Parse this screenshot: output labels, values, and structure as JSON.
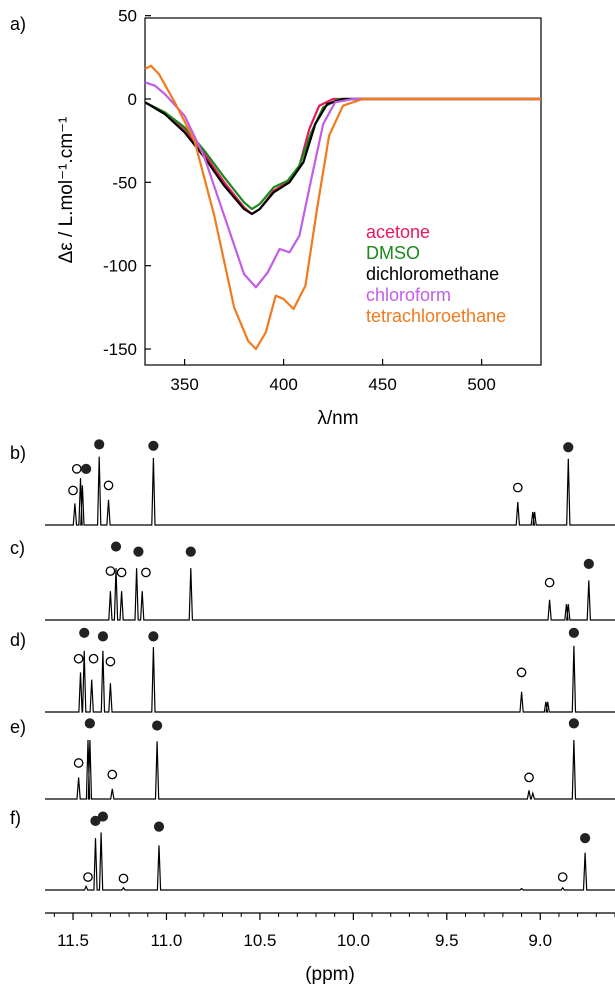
{
  "chart_data": [
    {
      "id": "a",
      "type": "line",
      "panel_label": "a)",
      "xlabel": "λ/nm",
      "ylabel": "Δε / L.mol⁻¹.cm⁻¹",
      "xlim": [
        330,
        530
      ],
      "ylim": [
        -160,
        50
      ],
      "x_ticks": [
        350,
        400,
        450,
        500
      ],
      "y_ticks": [
        50,
        0,
        -50,
        -100,
        -150
      ],
      "legend_placement": "lower-right",
      "grid": false,
      "series": [
        {
          "name": "acetone",
          "color": "#e8185e",
          "points": [
            [
              330,
              -2
            ],
            [
              340,
              -8
            ],
            [
              350,
              -18
            ],
            [
              360,
              -33
            ],
            [
              370,
              -50
            ],
            [
              380,
              -65
            ],
            [
              384,
              -69
            ],
            [
              388,
              -66
            ],
            [
              395,
              -55
            ],
            [
              402,
              -50
            ],
            [
              408,
              -40
            ],
            [
              413,
              -18
            ],
            [
              418,
              -4
            ],
            [
              425,
              0
            ],
            [
              450,
              0
            ],
            [
              530,
              0
            ]
          ]
        },
        {
          "name": "DMSO",
          "color": "#1a8a1a",
          "points": [
            [
              330,
              -2
            ],
            [
              340,
              -8
            ],
            [
              350,
              -17
            ],
            [
              360,
              -31
            ],
            [
              370,
              -47
            ],
            [
              380,
              -62
            ],
            [
              384,
              -66
            ],
            [
              388,
              -63
            ],
            [
              395,
              -53
            ],
            [
              402,
              -49
            ],
            [
              408,
              -40
            ],
            [
              414,
              -20
            ],
            [
              420,
              -5
            ],
            [
              428,
              0
            ],
            [
              450,
              0
            ],
            [
              530,
              0
            ]
          ]
        },
        {
          "name": "dichloromethane",
          "color": "#000000",
          "points": [
            [
              330,
              -2
            ],
            [
              340,
              -9
            ],
            [
              350,
              -20
            ],
            [
              360,
              -35
            ],
            [
              370,
              -52
            ],
            [
              380,
              -66
            ],
            [
              384,
              -69
            ],
            [
              388,
              -66
            ],
            [
              395,
              -56
            ],
            [
              403,
              -50
            ],
            [
              410,
              -38
            ],
            [
              416,
              -15
            ],
            [
              422,
              -3
            ],
            [
              430,
              0
            ],
            [
              450,
              0
            ],
            [
              530,
              0
            ]
          ]
        },
        {
          "name": "chloroform",
          "color": "#c25de6",
          "points": [
            [
              330,
              10
            ],
            [
              335,
              8
            ],
            [
              340,
              3
            ],
            [
              350,
              -10
            ],
            [
              360,
              -35
            ],
            [
              370,
              -70
            ],
            [
              380,
              -105
            ],
            [
              386,
              -113
            ],
            [
              392,
              -104
            ],
            [
              398,
              -90
            ],
            [
              403,
              -92
            ],
            [
              408,
              -82
            ],
            [
              414,
              -48
            ],
            [
              420,
              -15
            ],
            [
              426,
              -2
            ],
            [
              435,
              0
            ],
            [
              450,
              0
            ],
            [
              530,
              0
            ]
          ]
        },
        {
          "name": "tetrachloroethane",
          "color": "#f07a1e",
          "points": [
            [
              330,
              18
            ],
            [
              333,
              20
            ],
            [
              337,
              15
            ],
            [
              345,
              -2
            ],
            [
              355,
              -25
            ],
            [
              365,
              -70
            ],
            [
              375,
              -125
            ],
            [
              382,
              -145
            ],
            [
              386,
              -150
            ],
            [
              391,
              -140
            ],
            [
              396,
              -118
            ],
            [
              400,
              -120
            ],
            [
              405,
              -126
            ],
            [
              411,
              -112
            ],
            [
              417,
              -65
            ],
            [
              423,
              -22
            ],
            [
              430,
              -4
            ],
            [
              440,
              0
            ],
            [
              530,
              0
            ]
          ]
        }
      ]
    },
    {
      "id": "nmr",
      "type": "line",
      "xlabel": "(ppm)",
      "xlim": [
        11.65,
        8.6
      ],
      "x_ticks": [
        11.5,
        11.0,
        10.5,
        10.0,
        9.5,
        9.0
      ],
      "tick_labels": [
        "11.5",
        "11.0",
        "10.5",
        "10.0",
        "9.5",
        "9.0"
      ],
      "marker_legend": {
        "filled": "filled circle",
        "open": "open circle"
      },
      "panels": [
        {
          "label": "b)",
          "peaks": [
            {
              "ppm": 11.49,
              "h": 0.3
            },
            {
              "ppm": 11.46,
              "h": 0.65
            },
            {
              "ppm": 11.45,
              "h": 0.55
            },
            {
              "ppm": 11.36,
              "h": 0.95
            },
            {
              "ppm": 11.31,
              "h": 0.35
            },
            {
              "ppm": 11.07,
              "h": 0.93
            },
            {
              "ppm": 9.12,
              "h": 0.32
            },
            {
              "ppm": 9.04,
              "h": 0.18
            },
            {
              "ppm": 9.03,
              "h": 0.18
            },
            {
              "ppm": 8.85,
              "h": 0.92
            }
          ],
          "markers": [
            {
              "ppm": 11.5,
              "type": "open",
              "level": 0.48
            },
            {
              "ppm": 11.48,
              "type": "open",
              "level": 0.78
            },
            {
              "ppm": 11.43,
              "type": "filled",
              "level": 0.78
            },
            {
              "ppm": 11.36,
              "type": "filled",
              "level": 1.12
            },
            {
              "ppm": 11.31,
              "type": "open",
              "level": 0.55
            },
            {
              "ppm": 11.07,
              "type": "filled",
              "level": 1.1
            },
            {
              "ppm": 9.12,
              "type": "open",
              "level": 0.52
            },
            {
              "ppm": 8.85,
              "type": "filled",
              "level": 1.08
            }
          ]
        },
        {
          "label": "c)",
          "peaks": [
            {
              "ppm": 11.3,
              "h": 0.4
            },
            {
              "ppm": 11.27,
              "h": 0.72
            },
            {
              "ppm": 11.24,
              "h": 0.4
            },
            {
              "ppm": 11.16,
              "h": 0.72
            },
            {
              "ppm": 11.13,
              "h": 0.4
            },
            {
              "ppm": 10.87,
              "h": 0.72
            },
            {
              "ppm": 8.95,
              "h": 0.28
            },
            {
              "ppm": 8.86,
              "h": 0.22
            },
            {
              "ppm": 8.85,
              "h": 0.22
            },
            {
              "ppm": 8.74,
              "h": 0.55
            }
          ],
          "markers": [
            {
              "ppm": 11.3,
              "type": "open",
              "level": 0.68
            },
            {
              "ppm": 11.27,
              "type": "filled",
              "level": 1.02
            },
            {
              "ppm": 11.24,
              "type": "open",
              "level": 0.66
            },
            {
              "ppm": 11.15,
              "type": "filled",
              "level": 0.95
            },
            {
              "ppm": 11.11,
              "type": "open",
              "level": 0.66
            },
            {
              "ppm": 10.87,
              "type": "filled",
              "level": 0.95
            },
            {
              "ppm": 8.95,
              "type": "open",
              "level": 0.52
            },
            {
              "ppm": 8.74,
              "type": "filled",
              "level": 0.78
            }
          ]
        },
        {
          "label": "d)",
          "peaks": [
            {
              "ppm": 11.46,
              "h": 0.55
            },
            {
              "ppm": 11.44,
              "h": 0.85
            },
            {
              "ppm": 11.4,
              "h": 0.45
            },
            {
              "ppm": 11.34,
              "h": 0.85
            },
            {
              "ppm": 11.3,
              "h": 0.4
            },
            {
              "ppm": 11.07,
              "h": 0.9
            },
            {
              "ppm": 9.1,
              "h": 0.28
            },
            {
              "ppm": 8.97,
              "h": 0.14
            },
            {
              "ppm": 8.96,
              "h": 0.14
            },
            {
              "ppm": 8.82,
              "h": 0.92
            }
          ],
          "markers": [
            {
              "ppm": 11.47,
              "type": "open",
              "level": 0.74
            },
            {
              "ppm": 11.44,
              "type": "filled",
              "level": 1.1
            },
            {
              "ppm": 11.39,
              "type": "open",
              "level": 0.74
            },
            {
              "ppm": 11.34,
              "type": "filled",
              "level": 1.05
            },
            {
              "ppm": 11.3,
              "type": "open",
              "level": 0.7
            },
            {
              "ppm": 11.07,
              "type": "filled",
              "level": 1.05
            },
            {
              "ppm": 9.1,
              "type": "open",
              "level": 0.55
            },
            {
              "ppm": 8.82,
              "type": "filled",
              "level": 1.1
            }
          ]
        },
        {
          "label": "e)",
          "peaks": [
            {
              "ppm": 11.47,
              "h": 0.3
            },
            {
              "ppm": 11.42,
              "h": 0.82
            },
            {
              "ppm": 11.41,
              "h": 0.82
            },
            {
              "ppm": 11.29,
              "h": 0.14
            },
            {
              "ppm": 11.05,
              "h": 0.8
            },
            {
              "ppm": 9.06,
              "h": 0.12
            },
            {
              "ppm": 9.04,
              "h": 0.08
            },
            {
              "ppm": 8.82,
              "h": 0.82
            }
          ],
          "markers": [
            {
              "ppm": 11.47,
              "type": "open",
              "level": 0.5
            },
            {
              "ppm": 11.41,
              "type": "filled",
              "level": 1.05
            },
            {
              "ppm": 11.29,
              "type": "open",
              "level": 0.34
            },
            {
              "ppm": 11.05,
              "type": "filled",
              "level": 1.02
            },
            {
              "ppm": 9.06,
              "type": "open",
              "level": 0.3
            },
            {
              "ppm": 8.82,
              "type": "filled",
              "level": 1.05
            }
          ]
        },
        {
          "label": "f)",
          "peaks": [
            {
              "ppm": 11.43,
              "h": 0.05
            },
            {
              "ppm": 11.38,
              "h": 0.72
            },
            {
              "ppm": 11.35,
              "h": 0.8
            },
            {
              "ppm": 11.23,
              "h": 0.03
            },
            {
              "ppm": 11.04,
              "h": 0.62
            },
            {
              "ppm": 9.1,
              "h": 0.02
            },
            {
              "ppm": 8.88,
              "h": 0.03
            },
            {
              "ppm": 8.76,
              "h": 0.52
            }
          ],
          "markers": [
            {
              "ppm": 11.42,
              "type": "open",
              "level": 0.18
            },
            {
              "ppm": 11.38,
              "type": "filled",
              "level": 0.96
            },
            {
              "ppm": 11.34,
              "type": "filled",
              "level": 1.02
            },
            {
              "ppm": 11.23,
              "type": "open",
              "level": 0.16
            },
            {
              "ppm": 11.04,
              "type": "filled",
              "level": 0.88
            },
            {
              "ppm": 8.88,
              "type": "open",
              "level": 0.18
            },
            {
              "ppm": 8.76,
              "type": "filled",
              "level": 0.72
            }
          ]
        }
      ]
    }
  ]
}
